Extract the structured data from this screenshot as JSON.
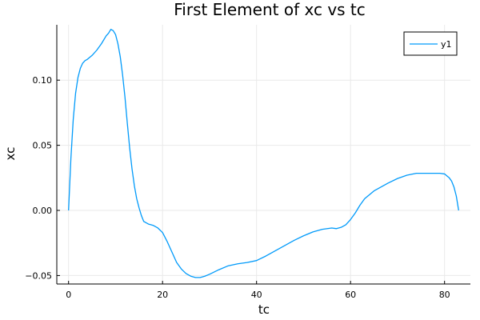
{
  "chart_data": {
    "type": "line",
    "title": "First Element of xc vs tc",
    "xlabel": "tc",
    "ylabel": "xc",
    "xlim": [
      -2.5,
      85.5
    ],
    "ylim": [
      -0.0565,
      0.1425
    ],
    "xticks": [
      0,
      20,
      40,
      60,
      80
    ],
    "xtick_labels": [
      "0",
      "20",
      "40",
      "60",
      "80"
    ],
    "yticks": [
      -0.05,
      0.0,
      0.05,
      0.1
    ],
    "ytick_labels": [
      "−0.05",
      "0.00",
      "0.05",
      "0.10"
    ],
    "grid": true,
    "legend": {
      "position": "top-right",
      "entries": [
        "y1"
      ]
    },
    "colors": {
      "series": "#009AFA",
      "grid": "#E9E9E9",
      "axis": "#000000"
    },
    "series": [
      {
        "name": "y1",
        "x": [
          0,
          0.5,
          1,
          1.5,
          2,
          2.5,
          3,
          3.5,
          4,
          5,
          6,
          7,
          8,
          8.5,
          9,
          9.5,
          10,
          10.5,
          11,
          11.5,
          12,
          12.5,
          13,
          13.5,
          14,
          14.5,
          15,
          15.5,
          16,
          16.5,
          17,
          17.5,
          18,
          19,
          20,
          21,
          22,
          23,
          24,
          25,
          26,
          27,
          28,
          29,
          30,
          32,
          34,
          36,
          38,
          40,
          42,
          44,
          46,
          48,
          50,
          52,
          54,
          56,
          57,
          58,
          59,
          60,
          61,
          62,
          63,
          64,
          65,
          66,
          68,
          70,
          72,
          74,
          76,
          78,
          79,
          80,
          80.5,
          81,
          81.5,
          82,
          82.5,
          83
        ],
        "y": [
          0.0,
          0.04,
          0.07,
          0.09,
          0.102,
          0.109,
          0.113,
          0.115,
          0.116,
          0.119,
          0.123,
          0.128,
          0.134,
          0.136,
          0.139,
          0.138,
          0.135,
          0.128,
          0.118,
          0.104,
          0.087,
          0.067,
          0.048,
          0.032,
          0.019,
          0.009,
          0.002,
          -0.004,
          -0.0085,
          -0.0095,
          -0.0105,
          -0.011,
          -0.0115,
          -0.0135,
          -0.017,
          -0.024,
          -0.032,
          -0.04,
          -0.045,
          -0.0485,
          -0.0505,
          -0.0515,
          -0.0515,
          -0.0505,
          -0.049,
          -0.0455,
          -0.0425,
          -0.041,
          -0.04,
          -0.0385,
          -0.035,
          -0.031,
          -0.027,
          -0.023,
          -0.0195,
          -0.0165,
          -0.0145,
          -0.0135,
          -0.014,
          -0.013,
          -0.011,
          -0.007,
          -0.002,
          0.004,
          0.009,
          0.012,
          0.015,
          0.017,
          0.021,
          0.0245,
          0.027,
          0.0285,
          0.0285,
          0.0285,
          0.0285,
          0.028,
          0.0265,
          0.025,
          0.0225,
          0.018,
          0.011,
          0.0
        ]
      }
    ]
  }
}
